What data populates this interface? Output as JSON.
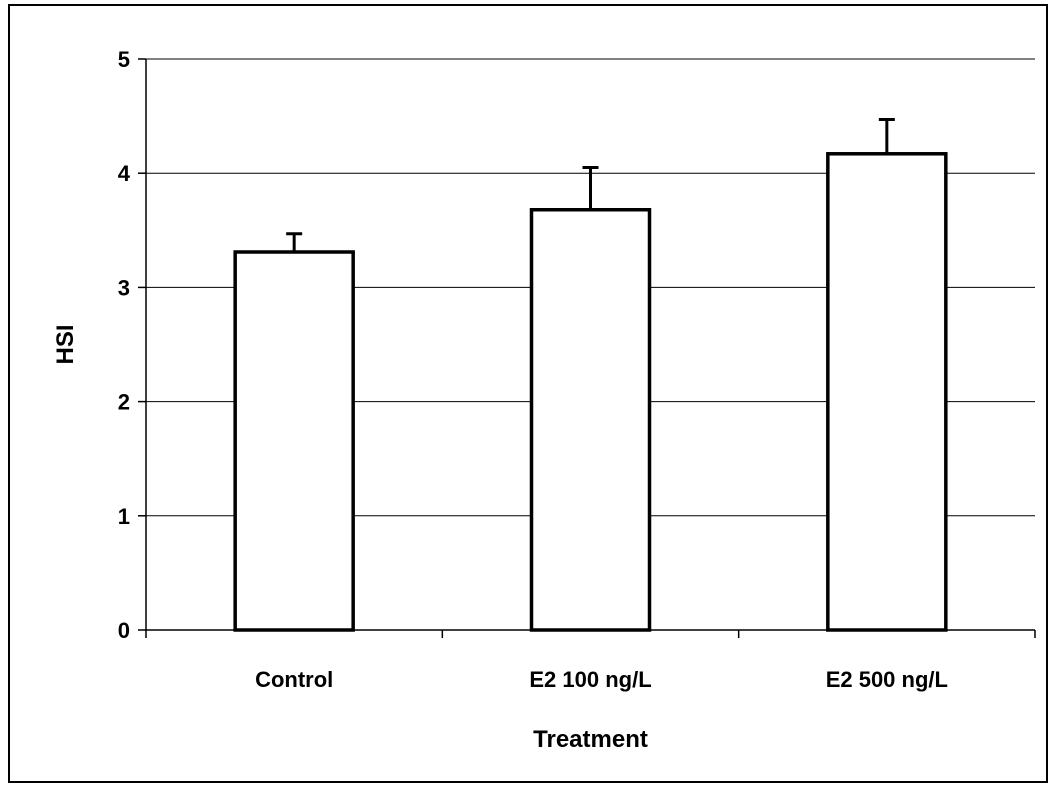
{
  "chart_data": {
    "type": "bar",
    "title": "",
    "xlabel": "Treatment",
    "ylabel": "HSI",
    "categories": [
      "Control",
      "E2 100 ng/L",
      "E2 500 ng/L"
    ],
    "series": [
      {
        "values": [
          3.31,
          3.68,
          4.17
        ],
        "error": [
          0.16,
          0.37,
          0.3
        ]
      }
    ],
    "ylim": [
      0,
      5
    ],
    "yticks": [
      "0",
      "1",
      "2",
      "3",
      "4",
      "5"
    ],
    "grid": true,
    "legend": "none",
    "colors": {
      "bar_fill": "#ffffff",
      "bar_stroke": "#000000",
      "grid": "#000000",
      "axis": "#000000"
    }
  }
}
